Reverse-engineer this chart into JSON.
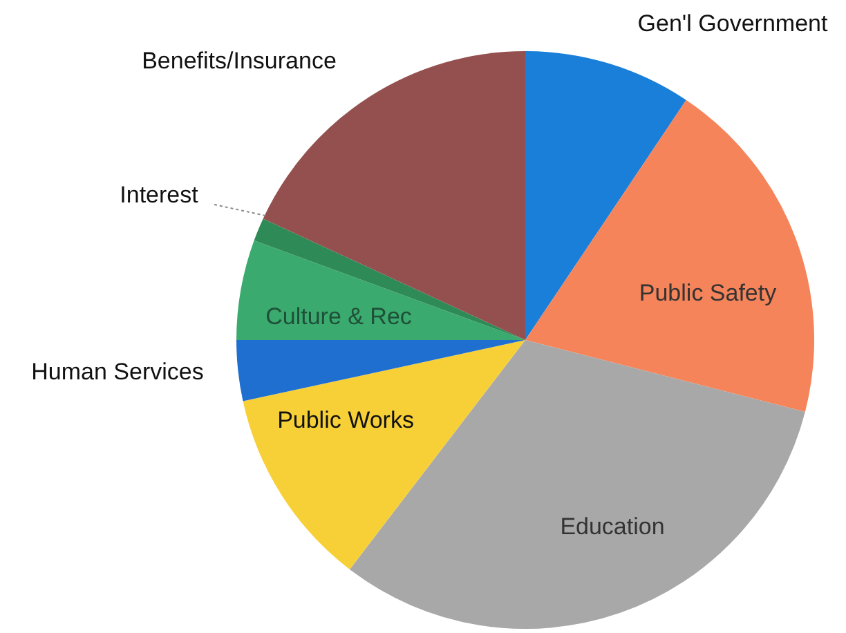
{
  "chart_data": {
    "type": "pie",
    "categories": [
      "Gen'l Government",
      "Public Safety",
      "Education",
      "Public Works",
      "Human Services",
      "Culture & Rec",
      "Interest",
      "Benefits/Insurance"
    ],
    "values": [
      9.4,
      19.6,
      31.4,
      11.2,
      3.4,
      5.6,
      1.3,
      18.1
    ],
    "colors": [
      "#1a7fd8",
      "#f5845a",
      "#a8a8a8",
      "#f7d038",
      "#1f6fd0",
      "#3aaa6e",
      "#2e8b57",
      "#93504f"
    ],
    "legend": false
  }
}
